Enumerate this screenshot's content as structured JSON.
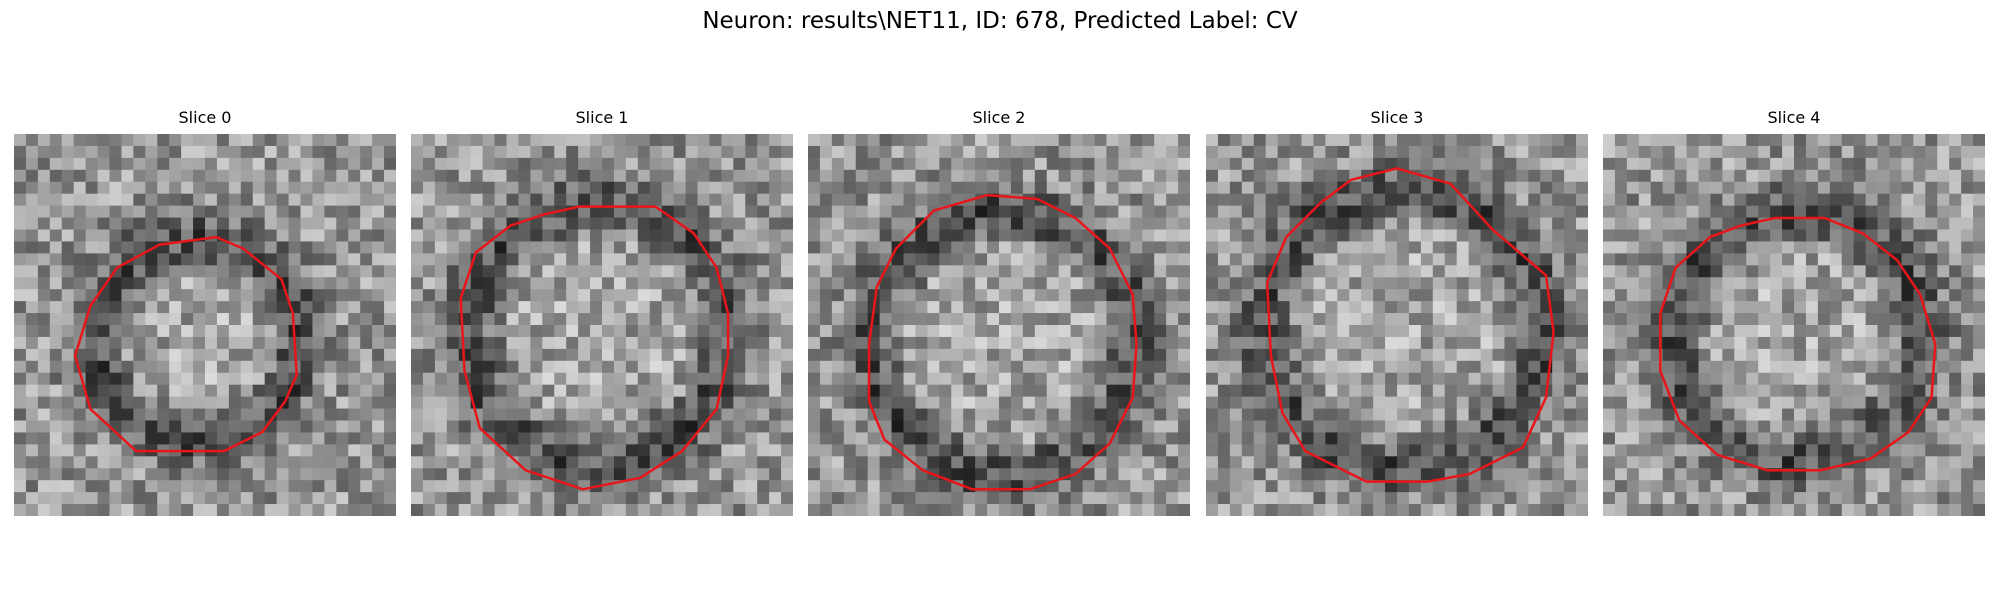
{
  "figure": {
    "title": "Neuron: results\\NET11, ID: 678, Predicted Label: CV"
  },
  "colors": {
    "contour": "#e8161b",
    "background": "#ffffff"
  },
  "panels": [
    {
      "title": "Slice 0",
      "contour": [
        [
          0.53,
          0.27
        ],
        [
          0.6,
          0.3
        ],
        [
          0.7,
          0.38
        ],
        [
          0.73,
          0.47
        ],
        [
          0.74,
          0.63
        ],
        [
          0.71,
          0.7
        ],
        [
          0.65,
          0.78
        ],
        [
          0.55,
          0.83
        ],
        [
          0.32,
          0.83
        ],
        [
          0.2,
          0.72
        ],
        [
          0.16,
          0.58
        ],
        [
          0.2,
          0.45
        ],
        [
          0.27,
          0.35
        ],
        [
          0.38,
          0.29
        ]
      ]
    },
    {
      "title": "Slice 1",
      "contour": [
        [
          0.44,
          0.19
        ],
        [
          0.64,
          0.19
        ],
        [
          0.74,
          0.26
        ],
        [
          0.8,
          0.35
        ],
        [
          0.83,
          0.47
        ],
        [
          0.83,
          0.58
        ],
        [
          0.8,
          0.72
        ],
        [
          0.71,
          0.83
        ],
        [
          0.6,
          0.9
        ],
        [
          0.45,
          0.93
        ],
        [
          0.3,
          0.88
        ],
        [
          0.18,
          0.77
        ],
        [
          0.14,
          0.62
        ],
        [
          0.13,
          0.43
        ],
        [
          0.17,
          0.31
        ],
        [
          0.26,
          0.24
        ],
        [
          0.35,
          0.21
        ]
      ]
    },
    {
      "title": "Slice 2",
      "contour": [
        [
          0.47,
          0.16
        ],
        [
          0.6,
          0.17
        ],
        [
          0.7,
          0.22
        ],
        [
          0.79,
          0.3
        ],
        [
          0.85,
          0.42
        ],
        [
          0.86,
          0.55
        ],
        [
          0.85,
          0.69
        ],
        [
          0.79,
          0.81
        ],
        [
          0.7,
          0.89
        ],
        [
          0.58,
          0.93
        ],
        [
          0.43,
          0.93
        ],
        [
          0.3,
          0.88
        ],
        [
          0.2,
          0.8
        ],
        [
          0.16,
          0.7
        ],
        [
          0.16,
          0.55
        ],
        [
          0.18,
          0.4
        ],
        [
          0.23,
          0.3
        ],
        [
          0.33,
          0.2
        ]
      ]
    },
    {
      "title": "Slice 3",
      "contour": [
        [
          0.38,
          0.12
        ],
        [
          0.5,
          0.09
        ],
        [
          0.64,
          0.13
        ],
        [
          0.75,
          0.25
        ],
        [
          0.89,
          0.37
        ],
        [
          0.91,
          0.52
        ],
        [
          0.89,
          0.69
        ],
        [
          0.83,
          0.82
        ],
        [
          0.69,
          0.89
        ],
        [
          0.58,
          0.91
        ],
        [
          0.42,
          0.91
        ],
        [
          0.26,
          0.83
        ],
        [
          0.2,
          0.73
        ],
        [
          0.17,
          0.58
        ],
        [
          0.16,
          0.39
        ],
        [
          0.21,
          0.27
        ],
        [
          0.3,
          0.18
        ]
      ]
    },
    {
      "title": "Slice 4",
      "contour": [
        [
          0.45,
          0.22
        ],
        [
          0.58,
          0.22
        ],
        [
          0.68,
          0.26
        ],
        [
          0.77,
          0.33
        ],
        [
          0.83,
          0.42
        ],
        [
          0.87,
          0.55
        ],
        [
          0.86,
          0.69
        ],
        [
          0.8,
          0.78
        ],
        [
          0.7,
          0.85
        ],
        [
          0.57,
          0.88
        ],
        [
          0.43,
          0.88
        ],
        [
          0.3,
          0.84
        ],
        [
          0.2,
          0.75
        ],
        [
          0.15,
          0.62
        ],
        [
          0.15,
          0.47
        ],
        [
          0.19,
          0.35
        ],
        [
          0.28,
          0.27
        ],
        [
          0.36,
          0.24
        ]
      ]
    }
  ]
}
